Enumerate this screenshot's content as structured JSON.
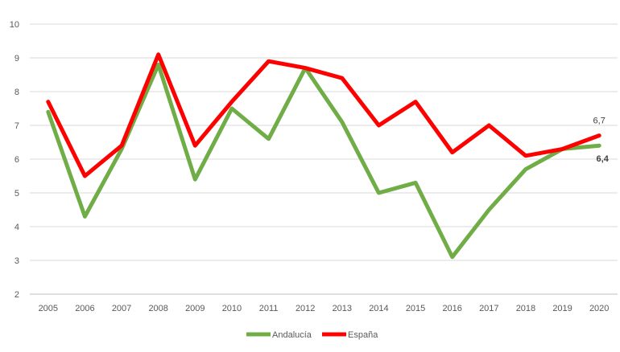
{
  "chart_data": {
    "type": "line",
    "title": "",
    "xlabel": "",
    "ylabel": "",
    "x": [
      "2005",
      "2006",
      "2007",
      "2008",
      "2009",
      "2010",
      "2011",
      "2012",
      "2013",
      "2014",
      "2015",
      "2016",
      "2017",
      "2018",
      "2019",
      "2020"
    ],
    "ylim": [
      2,
      10
    ],
    "yticks": [
      "2",
      "3",
      "4",
      "5",
      "6",
      "7",
      "8",
      "9",
      "10"
    ],
    "grid": true,
    "legend_position": "bottom",
    "series": [
      {
        "name": "Andalucía",
        "color": "#70AD47",
        "values": [
          7.4,
          4.3,
          6.3,
          8.8,
          5.4,
          7.5,
          6.6,
          8.7,
          7.1,
          5.0,
          5.3,
          3.1,
          4.5,
          5.7,
          6.3,
          6.4
        ],
        "end_label": "6,4"
      },
      {
        "name": "España",
        "color": "#FF0000",
        "values": [
          7.7,
          5.5,
          6.4,
          9.1,
          6.4,
          7.7,
          8.9,
          8.7,
          8.4,
          7.0,
          7.7,
          6.2,
          7.0,
          6.1,
          6.3,
          6.7
        ],
        "end_label": "6,7"
      }
    ]
  }
}
